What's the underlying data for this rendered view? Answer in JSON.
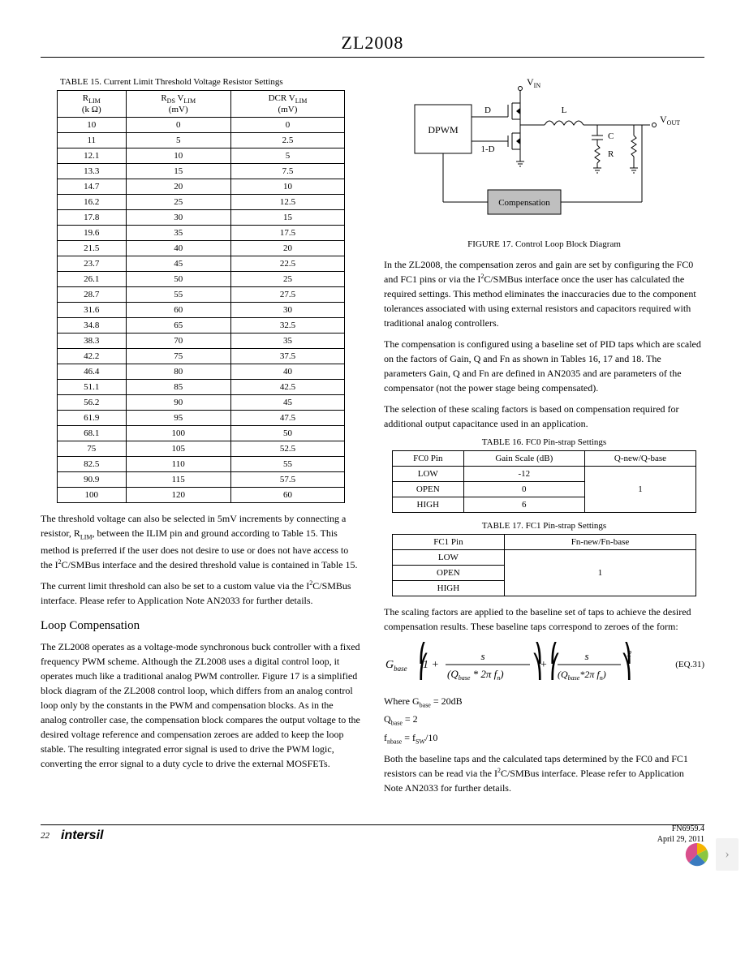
{
  "page": {
    "title": "ZL2008",
    "number": "22",
    "brand": "intersil",
    "docnum": "FN6959.4",
    "date": "April 29, 2011"
  },
  "table15": {
    "caption": "TABLE 15. Current Limit Threshold Voltage Resistor Settings",
    "headers": {
      "col1_main": "R",
      "col1_sub": "LIM",
      "col1_unit": "(k Ω)",
      "col2_main": "R",
      "col2_sub": "DS",
      "col2_v": "V",
      "col2_vsub": "LIM",
      "col2_unit": "(mV)",
      "col3_main": "DCR V",
      "col3_sub": "LIM",
      "col3_unit": "(mV)"
    },
    "rows": [
      [
        "10",
        "0",
        "0"
      ],
      [
        "11",
        "5",
        "2.5"
      ],
      [
        "12.1",
        "10",
        "5"
      ],
      [
        "13.3",
        "15",
        "7.5"
      ],
      [
        "14.7",
        "20",
        "10"
      ],
      [
        "16.2",
        "25",
        "12.5"
      ],
      [
        "17.8",
        "30",
        "15"
      ],
      [
        "19.6",
        "35",
        "17.5"
      ],
      [
        "21.5",
        "40",
        "20"
      ],
      [
        "23.7",
        "45",
        "22.5"
      ],
      [
        "26.1",
        "50",
        "25"
      ],
      [
        "28.7",
        "55",
        "27.5"
      ],
      [
        "31.6",
        "60",
        "30"
      ],
      [
        "34.8",
        "65",
        "32.5"
      ],
      [
        "38.3",
        "70",
        "35"
      ],
      [
        "42.2",
        "75",
        "37.5"
      ],
      [
        "46.4",
        "80",
        "40"
      ],
      [
        "51.1",
        "85",
        "42.5"
      ],
      [
        "56.2",
        "90",
        "45"
      ],
      [
        "61.9",
        "95",
        "47.5"
      ],
      [
        "68.1",
        "100",
        "50"
      ],
      [
        "75",
        "105",
        "52.5"
      ],
      [
        "82.5",
        "110",
        "55"
      ],
      [
        "90.9",
        "115",
        "57.5"
      ],
      [
        "100",
        "120",
        "60"
      ]
    ]
  },
  "left_text": {
    "p1_a": "The threshold voltage can also be selected in 5mV increments by connecting a resistor, R",
    "p1_sub": "LIM",
    "p1_b": ", between the ILIM pin and ground according to Table 15. This method is preferred if the user does not desire to use or does not have access to the I",
    "p1_sup": "2",
    "p1_c": "C/SMBus interface and the desired threshold value is contained in Table 15.",
    "p2_a": "The current limit threshold can also be set to a custom value via the I",
    "p2_sup": "2",
    "p2_b": "C/SMBus interface. Please refer to Application Note AN2033 for further details.",
    "h_loop": "Loop Compensation",
    "p3": "The ZL2008 operates as a voltage-mode synchronous buck controller with a fixed frequency PWM scheme. Although the ZL2008 uses a digital control loop, it operates much like a traditional analog PWM controller. Figure 17 is a simplified block diagram of the ZL2008 control loop, which differs from an analog control loop only by the constants in the PWM and compensation blocks. As in the analog controller case, the compensation block compares the output voltage to the desired voltage reference and compensation zeroes are added to keep the loop stable. The resulting integrated error signal is used to drive the PWM logic, converting the error signal to a duty cycle to drive the external MOSFETs."
  },
  "figure17": {
    "caption": "FIGURE 17. Control Loop Block Diagram",
    "labels": {
      "vin": "V",
      "vin_sub": "IN",
      "vout": "V",
      "vout_sub": "OUT",
      "dpwm": "DPWM",
      "d": "D",
      "oned": "1-D",
      "l": "L",
      "c": "C",
      "r": "R",
      "comp": "Compensation"
    },
    "colors": {
      "line": "#000000",
      "fill_box": "#d9d9d9",
      "comp_fill": "#bfbfbf"
    }
  },
  "right_text": {
    "p1_a": "In the ZL2008, the compensation zeros and gain are set by configuring the FC0 and FC1 pins or via the I",
    "p1_sup": "2",
    "p1_b": "C/SMBus interface once the user has calculated the required settings. This method eliminates the inaccuracies due to the component tolerances associated with using external resistors and capacitors required with traditional analog controllers.",
    "p2": "The compensation is configured using a baseline set of PID taps which are scaled on the factors of Gain, Q and Fn as shown in Tables 16, 17 and 18. The parameters Gain, Q and Fn are defined in AN2035 and are parameters of the compensator (not the power stage being compensated).",
    "p3": "The selection of these scaling factors is based on compensation required for additional output capacitance used in an application.",
    "p4": "The scaling factors are applied to the baseline set of taps to achieve the desired compensation results. These baseline taps correspond to zeroes of the form:",
    "eq_label": "(EQ.31)",
    "where_g": "Where G",
    "where_g_sub": "base",
    "where_g_val": " = 20dB",
    "where_q": "Q",
    "where_q_sub": "base",
    "where_q_val": " = 2",
    "where_f": "f",
    "where_f_sub": "nbase",
    "where_f_eq": " = f",
    "where_f_sub2": "SW",
    "where_f_val": "/10",
    "p5_a": "Both the baseline taps and the calculated taps determined by the FC0 and FC1 resistors can be read via the I",
    "p5_sup": "2",
    "p5_b": "C/SMBus interface. Please refer to Application Note AN2033 for further details."
  },
  "table16": {
    "caption": "TABLE 16. FC0 Pin-strap Settings",
    "headers": [
      "FC0 Pin",
      "Gain Scale (dB)",
      "Q-new/Q-base"
    ],
    "rows": [
      [
        "LOW",
        "-12"
      ],
      [
        "OPEN",
        "0"
      ],
      [
        "HIGH",
        "6"
      ]
    ],
    "merged_last": "1"
  },
  "table17": {
    "caption": "TABLE 17. FC1 Pin-strap Settings",
    "headers": [
      "FC1 Pin",
      "Fn-new/Fn-base"
    ],
    "rows": [
      [
        "LOW"
      ],
      [
        "OPEN"
      ],
      [
        "HIGH"
      ]
    ],
    "merged_last": "1"
  },
  "equation": {
    "gbase": "G",
    "gbase_sub": "base",
    "s": "s",
    "qbase": "Q",
    "qbase_sub": "base",
    "twopi": "2π f",
    "fn_sub": "n",
    "exp": "2"
  }
}
